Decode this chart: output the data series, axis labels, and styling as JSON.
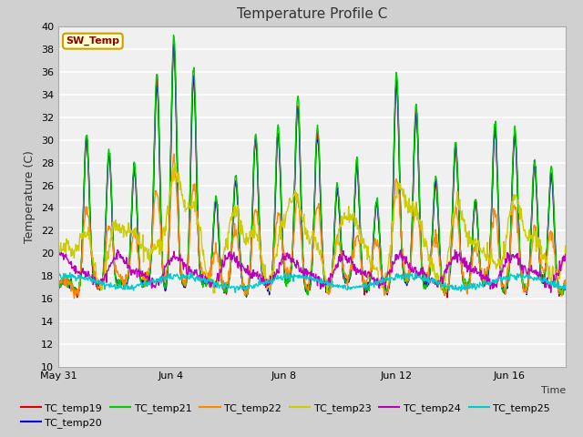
{
  "title": "Temperature Profile C",
  "xlabel": "Time",
  "ylabel": "Temperature (C)",
  "ylim": [
    10,
    40
  ],
  "yticks": [
    10,
    12,
    14,
    16,
    18,
    20,
    22,
    24,
    26,
    28,
    30,
    32,
    34,
    36,
    38,
    40
  ],
  "fig_bg": "#d0d0d0",
  "plot_bg": "#f0f0f0",
  "grid_color": "#ffffff",
  "legend_label": "SW_Temp",
  "legend_bg": "#ffffcc",
  "legend_border": "#c8a000",
  "series_order": [
    "TC_temp19",
    "TC_temp20",
    "TC_temp21",
    "TC_temp22",
    "TC_temp23",
    "TC_temp24",
    "TC_temp25"
  ],
  "series_colors": {
    "TC_temp19": "#dd0000",
    "TC_temp20": "#0000dd",
    "TC_temp21": "#00cc00",
    "TC_temp22": "#ff8800",
    "TC_temp23": "#cccc00",
    "TC_temp24": "#bb00bb",
    "TC_temp25": "#00cccc"
  },
  "xtick_positions": [
    0,
    4,
    8,
    12,
    16
  ],
  "xtick_labels": [
    "May 31",
    "Jun 4",
    "Jun 8",
    "Jun 12",
    "Jun 16"
  ],
  "total_days": 18,
  "spike_days": [
    1.0,
    1.8,
    2.7,
    3.5,
    4.1,
    4.8,
    5.6,
    6.3,
    7.0,
    7.8,
    8.5,
    9.2,
    9.9,
    10.6,
    11.3,
    12.0,
    12.7,
    13.4,
    14.1,
    14.8,
    15.5,
    16.2,
    16.9,
    17.5
  ],
  "spike_heights_hi": [
    13,
    12,
    11,
    18,
    21,
    19,
    8,
    9,
    13,
    14,
    16,
    13,
    9,
    11,
    7,
    18,
    16,
    9,
    12,
    8,
    14,
    13,
    11,
    10
  ],
  "spike_heights_lo": [
    11,
    10,
    9,
    16,
    19,
    17,
    7,
    8,
    11,
    12,
    14,
    11,
    8,
    9,
    6,
    16,
    14,
    8,
    10,
    7,
    12,
    11,
    9,
    8
  ]
}
